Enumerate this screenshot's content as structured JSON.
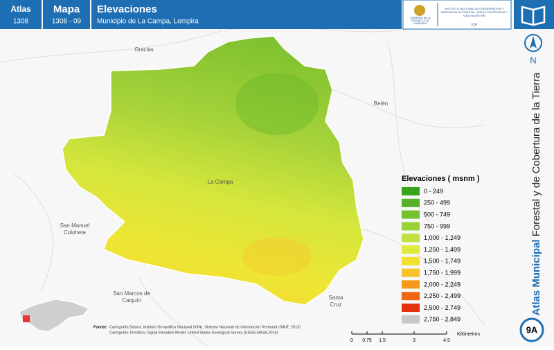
{
  "header": {
    "atlas_label": "Atlas",
    "atlas_code": "1308",
    "mapa_label": "Mapa",
    "mapa_code": "1308 - 09",
    "title": "Elevaciones",
    "subtitle": "Municipio de La Campa, Lempira",
    "logo_left": "GOBIERNO DE LA REPÚBLICA DE HONDURAS",
    "logo_right": "INSTITUTO NACIONAL DE CONSERVACIÓN Y DESARROLLO FORESTAL, ÁREAS PROTEGIDAS Y VIDA SILVESTRE",
    "logo_abbr": "ICF"
  },
  "places": {
    "gracias": "Gracias",
    "belen": "Belén",
    "la_campa": "La Campa",
    "san_manuel": [
      "San Manuel",
      "Colohete"
    ],
    "san_marcos": [
      "San Marcos de",
      "Caiquín"
    ],
    "santa_cruz": [
      "Santa",
      "Cruz"
    ]
  },
  "north": "N",
  "legend": {
    "title": "Elevaciones ( msnm )",
    "items": [
      {
        "label": "0 - 249",
        "color": "#3aa31c"
      },
      {
        "label": "250 - 499",
        "color": "#55b226"
      },
      {
        "label": "500 - 749",
        "color": "#74c22e"
      },
      {
        "label": "750 - 999",
        "color": "#98d236"
      },
      {
        "label": "1,000 - 1,249",
        "color": "#bfe23c"
      },
      {
        "label": "1,250 - 1,499",
        "color": "#e0ea3a"
      },
      {
        "label": "1,500 - 1,749",
        "color": "#f4e030"
      },
      {
        "label": "1,750 - 1,999",
        "color": "#f7c22a"
      },
      {
        "label": "2,000 - 2,249",
        "color": "#f5981c"
      },
      {
        "label": "2,250 - 2,499",
        "color": "#f06614"
      },
      {
        "label": "2,500 - 2,749",
        "color": "#e5300e"
      },
      {
        "label": "2,750 - 2,849",
        "color": "#c8c8c8"
      }
    ]
  },
  "scale": {
    "ticks": [
      "0",
      "0.75",
      "1.5",
      "3",
      "4.5"
    ],
    "unit": "Kilómetros"
  },
  "sources": {
    "label": "Fuente:",
    "lines": [
      "Cartografía Básica: Instituto Geográfico Nacional (IGN), Sistema Nacional de Información Territorial (SINIT, 2013)",
      "Cartografía Temática: Digital Elevation Model, United States Geological Survey (USGS-NASA,2014)"
    ]
  },
  "side_title": {
    "bold": "Atlas Municipal",
    "rest": " Forestal y de Cobertura de la Tierra"
  },
  "badge": "9A"
}
